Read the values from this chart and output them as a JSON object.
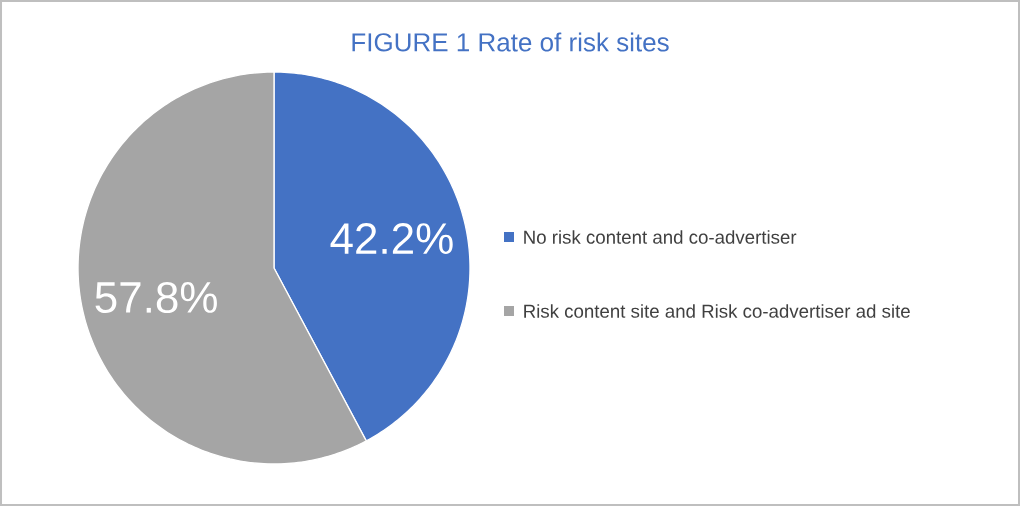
{
  "chart_data": {
    "type": "pie",
    "title": "FIGURE 1 Rate of risk sites",
    "categories": [
      "No risk content and co-advertiser",
      "Risk content site and Risk co-advertiser ad site"
    ],
    "values": [
      42.2,
      57.8
    ],
    "colors": [
      "#4472c4",
      "#a5a5a5"
    ],
    "value_labels": [
      "42.2%",
      "57.8%"
    ],
    "legend": "right"
  }
}
